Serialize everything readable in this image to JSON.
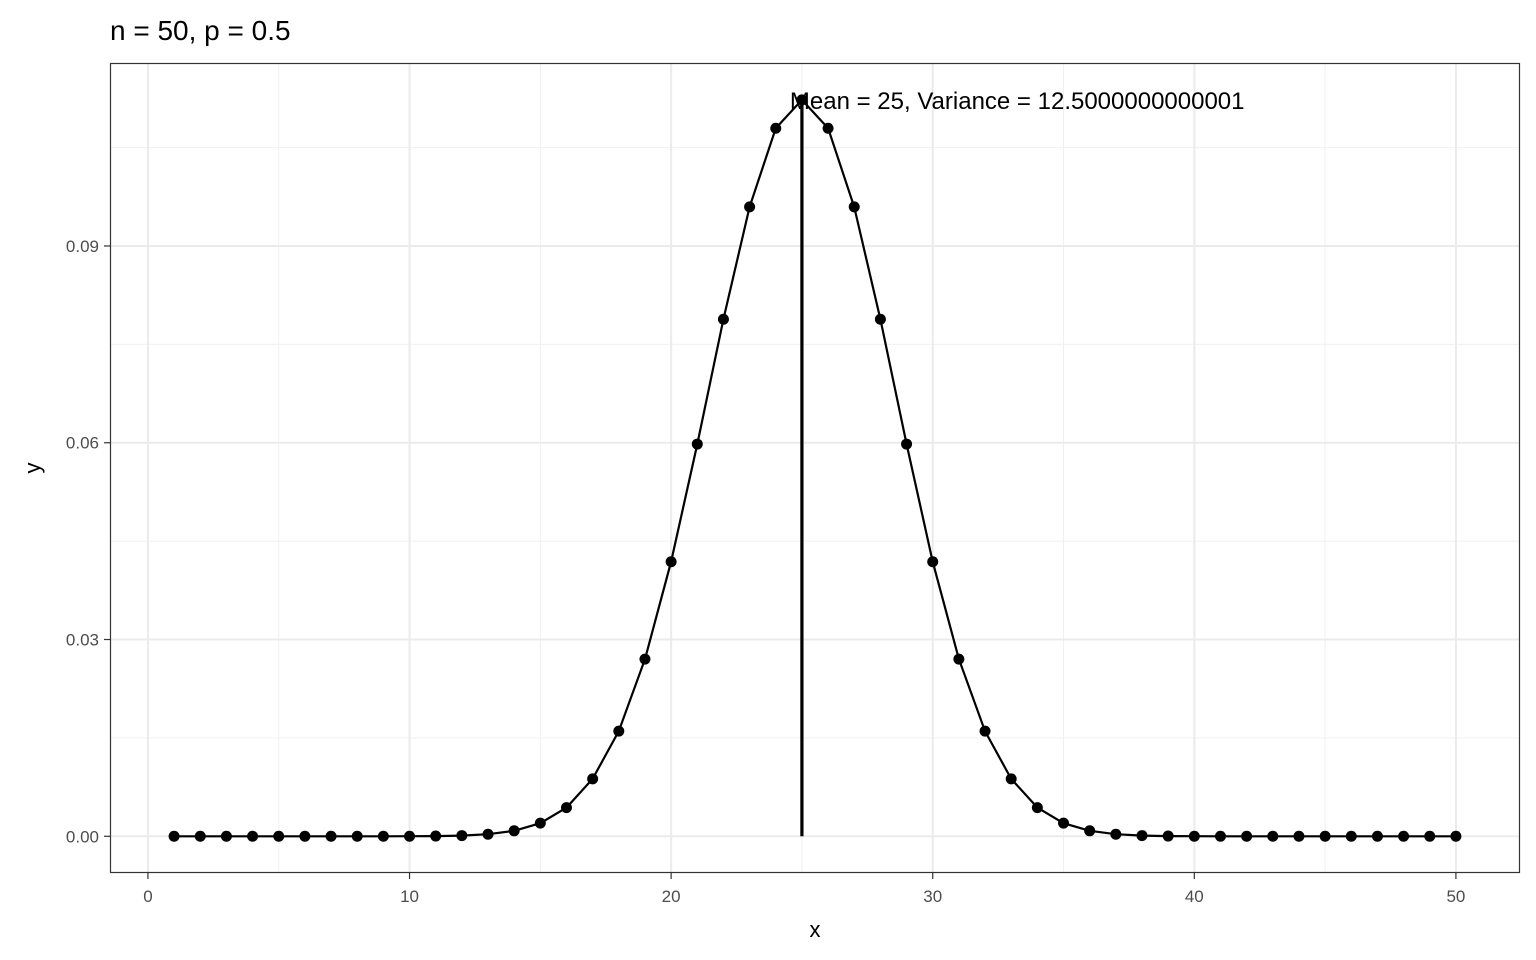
{
  "chart_data": {
    "type": "line",
    "title": "n = 50, p = 0.5",
    "xlabel": "x",
    "ylabel": "y",
    "xlim": [
      -1.45,
      52.45
    ],
    "ylim": [
      -0.0056,
      0.1179
    ],
    "x_ticks": [
      0,
      10,
      20,
      30,
      40,
      50
    ],
    "x_tick_labels": [
      "0",
      "10",
      "20",
      "30",
      "40",
      "50"
    ],
    "y_ticks": [
      0,
      0.03,
      0.06,
      0.09
    ],
    "y_tick_labels": [
      "0.00",
      "0.03",
      "0.06",
      "0.09"
    ],
    "grid": true,
    "markers": true,
    "line_color": "#000000",
    "x": [
      1,
      2,
      3,
      4,
      5,
      6,
      7,
      8,
      9,
      10,
      11,
      12,
      13,
      14,
      15,
      16,
      17,
      18,
      19,
      20,
      21,
      22,
      23,
      24,
      25,
      26,
      27,
      28,
      29,
      30,
      31,
      32,
      33,
      34,
      35,
      36,
      37,
      38,
      39,
      40,
      41,
      42,
      43,
      44,
      45,
      46,
      47,
      48,
      49,
      50
    ],
    "y": [
      4.44e-14,
      1.09e-12,
      1.74e-11,
      2.05e-10,
      1.88e-09,
      1.41e-08,
      8.87e-08,
      4.77e-07,
      2.23e-06,
      9.12e-06,
      3.32e-05,
      0.0001078,
      0.0003152,
      0.000833,
      0.001999,
      0.004373,
      0.008746,
      0.016035,
      0.027006,
      0.041859,
      0.059798,
      0.078826,
      0.095962,
      0.107957,
      0.112275,
      0.107957,
      0.095962,
      0.078826,
      0.059798,
      0.041859,
      0.027006,
      0.016035,
      0.008746,
      0.004373,
      0.001999,
      0.000833,
      0.0003152,
      0.0001078,
      3.32e-05,
      9.12e-06,
      2.23e-06,
      4.77e-07,
      8.87e-08,
      1.41e-08,
      1.88e-09,
      2.05e-10,
      1.74e-11,
      1.09e-12,
      4.44e-14,
      8.88e-16
    ],
    "mean_line": {
      "x": 25,
      "y_from": 0,
      "y_to": 0.112275
    },
    "annotation": {
      "text": "Mean = 25, Variance = 12.5000000000001",
      "x": 25,
      "y": 0.112275
    }
  }
}
